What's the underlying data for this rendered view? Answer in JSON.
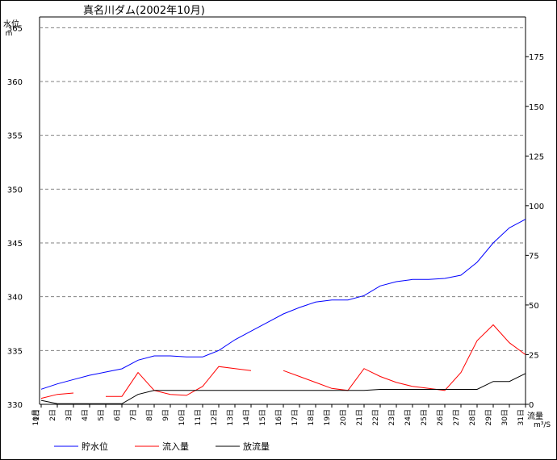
{
  "chart_data": {
    "type": "line",
    "title": "真名川ダム(2002年10月)",
    "y_left": {
      "label": "水位",
      "unit": "m",
      "range": [
        330,
        366
      ],
      "ticks": [
        330,
        335,
        340,
        345,
        350,
        355,
        360,
        365
      ]
    },
    "y_right": {
      "label": "流量",
      "unit": "m³/S",
      "range": [
        0,
        195
      ],
      "ticks": [
        0,
        25,
        50,
        75,
        100,
        125,
        150,
        175
      ]
    },
    "x_labels": [
      "1日",
      "2日",
      "3日",
      "4日",
      "5日",
      "6日",
      "7日",
      "8日",
      "9日",
      "10日",
      "11日",
      "12日",
      "13日",
      "14日",
      "15日",
      "16日",
      "17日",
      "18日",
      "19日",
      "20日",
      "21日",
      "22日",
      "23日",
      "24日",
      "25日",
      "26日",
      "27日",
      "28日",
      "29日",
      "30日",
      "31日"
    ],
    "month_label": "10月",
    "grid": "horizontal-dashed",
    "legend": "bottom",
    "series": [
      {
        "name": "貯水位",
        "axis": "left",
        "color": "#0000ff",
        "values": [
          331.4,
          331.9,
          332.3,
          332.7,
          333.0,
          333.3,
          334.1,
          334.5,
          334.5,
          334.4,
          334.4,
          335.0,
          336.0,
          336.8,
          337.6,
          338.4,
          339.0,
          339.5,
          339.7,
          339.7,
          340.1,
          341.0,
          341.4,
          341.6,
          341.6,
          341.7,
          342.0,
          343.2,
          345.0,
          346.4,
          347.2
        ]
      },
      {
        "name": "流入量",
        "axis": "right",
        "color": "#ff0000",
        "values": [
          3,
          5,
          5.7,
          null,
          4,
          4,
          16,
          7,
          5,
          4.5,
          9,
          19,
          18,
          17,
          null,
          17,
          14,
          11,
          8,
          7,
          18,
          14,
          11,
          9,
          8,
          7,
          16,
          32,
          40,
          31,
          25
        ]
      },
      {
        "name": "放流量",
        "axis": "right",
        "color": "#000000",
        "values": [
          2,
          0.3,
          0.3,
          0.3,
          0.3,
          0.3,
          5,
          7,
          7,
          7,
          7,
          7,
          7,
          7,
          7,
          7,
          7,
          7,
          7,
          7,
          7,
          7.5,
          7.5,
          7.5,
          7.5,
          7.5,
          7.5,
          7.5,
          11.5,
          11.5,
          15.5
        ]
      }
    ]
  }
}
